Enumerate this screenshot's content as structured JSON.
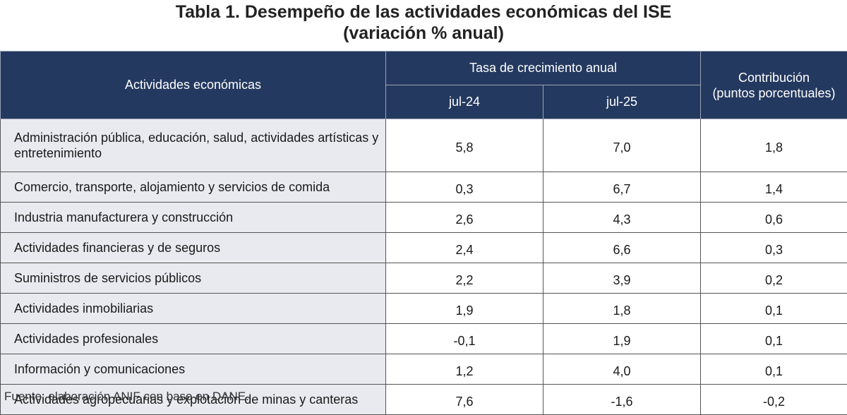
{
  "title": {
    "line1": "Tabla 1. Desempeño de las actividades económicas del ISE",
    "line2": "(variación % anual)"
  },
  "header": {
    "activities": "Actividades económicas",
    "growth": "Tasa de crecimiento anual",
    "period1": "jul-24",
    "period2": "jul-25",
    "contribution_line1": "Contribución",
    "contribution_line2": "(puntos porcentuales)"
  },
  "rows": [
    {
      "name": "Administración pública, educación, salud, actividades artísticas y entretenimiento",
      "jul24": "5,8",
      "jul25": "7,0",
      "contrib": "1,8"
    },
    {
      "name": "Comercio, transporte, alojamiento y servicios de comida",
      "jul24": "0,3",
      "jul25": "6,7",
      "contrib": "1,4"
    },
    {
      "name": "Industria manufacturera y construcción",
      "jul24": "2,6",
      "jul25": "4,3",
      "contrib": "0,6"
    },
    {
      "name": "Actividades financieras y de seguros",
      "jul24": "2,4",
      "jul25": "6,6",
      "contrib": "0,3"
    },
    {
      "name": "Suministros de servicios públicos",
      "jul24": "2,2",
      "jul25": "3,9",
      "contrib": "0,2"
    },
    {
      "name": "Actividades inmobiliarias",
      "jul24": "1,9",
      "jul25": "1,8",
      "contrib": "0,1"
    },
    {
      "name": "Actividades profesionales",
      "jul24": "-0,1",
      "jul25": "1,9",
      "contrib": "0,1"
    },
    {
      "name": "Información y comunicaciones",
      "jul24": "1,2",
      "jul25": "4,0",
      "contrib": "0,1"
    },
    {
      "name": "Actividades agropecuarias y explotación de minas y canteras",
      "jul24": "7,6",
      "jul25": "-1,6",
      "contrib": "-0,2"
    }
  ],
  "footer": "Fuente: elaboración ANIF con base en DANE."
}
